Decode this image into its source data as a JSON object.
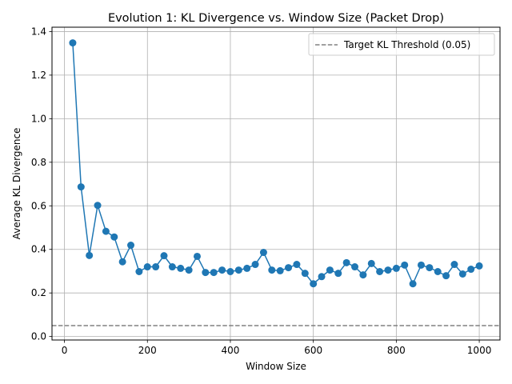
{
  "chart_data": {
    "type": "line",
    "title": "Evolution 1: KL Divergence vs. Window Size (Packet Drop)",
    "xlabel": "Window Size",
    "ylabel": "Average KL Divergence",
    "xlim": [
      -30,
      1050
    ],
    "ylim": [
      -0.016,
      1.42
    ],
    "xticks": [
      0,
      200,
      400,
      600,
      800,
      1000
    ],
    "yticks": [
      0.0,
      0.2,
      0.4,
      0.6,
      0.8,
      1.0,
      1.2,
      1.4
    ],
    "xtick_labels": [
      "0",
      "200",
      "400",
      "600",
      "800",
      "1000"
    ],
    "ytick_labels": [
      "0.0",
      "0.2",
      "0.4",
      "0.6",
      "0.8",
      "1.0",
      "1.2",
      "1.4"
    ],
    "grid": true,
    "legend_position": "top-right",
    "x": [
      20,
      40,
      60,
      80,
      100,
      120,
      140,
      160,
      180,
      200,
      220,
      240,
      260,
      280,
      300,
      320,
      340,
      360,
      380,
      400,
      420,
      440,
      460,
      480,
      500,
      520,
      540,
      560,
      580,
      600,
      620,
      640,
      660,
      680,
      700,
      720,
      740,
      760,
      780,
      800,
      820,
      840,
      860,
      880,
      900,
      920,
      940,
      960,
      980,
      1000
    ],
    "series": [
      {
        "name": "",
        "color": "#1f77b4",
        "values": [
          1.348,
          0.687,
          0.372,
          0.602,
          0.483,
          0.457,
          0.343,
          0.419,
          0.298,
          0.32,
          0.32,
          0.371,
          0.32,
          0.313,
          0.305,
          0.368,
          0.294,
          0.294,
          0.305,
          0.298,
          0.305,
          0.313,
          0.331,
          0.386,
          0.305,
          0.302,
          0.316,
          0.331,
          0.29,
          0.242,
          0.275,
          0.305,
          0.29,
          0.339,
          0.32,
          0.283,
          0.335,
          0.298,
          0.305,
          0.313,
          0.328,
          0.242,
          0.328,
          0.316,
          0.298,
          0.279,
          0.331,
          0.287,
          0.309,
          0.324
        ]
      }
    ],
    "threshold": {
      "value": 0.05,
      "label": "Target KL Threshold (0.05)",
      "color": "#808080",
      "style": "dashed"
    }
  }
}
